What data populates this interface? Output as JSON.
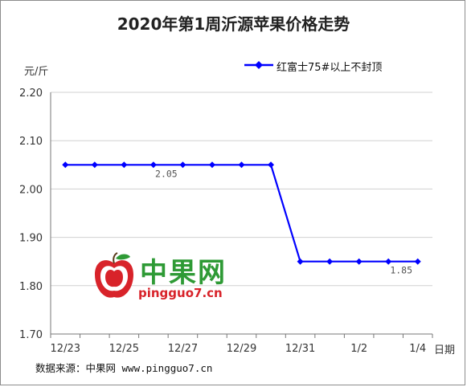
{
  "chart_data": {
    "type": "line",
    "title": "2020年第1周沂源苹果价格走势",
    "ylabel": "元/斤",
    "xlabel": "日期",
    "ylim": [
      1.7,
      2.2
    ],
    "yticks": [
      "2.20",
      "2.10",
      "2.00",
      "1.90",
      "1.80",
      "1.70"
    ],
    "ytick_values": [
      2.2,
      2.1,
      2.0,
      1.9,
      1.8,
      1.7
    ],
    "x": [
      "12/23",
      "12/24",
      "12/25",
      "12/26",
      "12/27",
      "12/28",
      "12/29",
      "12/30",
      "12/31",
      "1/1",
      "1/2",
      "1/3",
      "1/4"
    ],
    "xtick_labels": [
      "12/23",
      "",
      "12/25",
      "",
      "12/27",
      "",
      "12/29",
      "",
      "12/31",
      "",
      "1/2",
      "",
      "1/4"
    ],
    "series": [
      {
        "name": "红富士75#以上不封顶",
        "values": [
          2.05,
          2.05,
          2.05,
          2.05,
          2.05,
          2.05,
          2.05,
          2.05,
          1.85,
          1.85,
          1.85,
          1.85,
          1.85
        ],
        "color": "#0000ff"
      }
    ],
    "annotations": [
      {
        "text": "2.05",
        "at": "12/26"
      },
      {
        "text": "1.85",
        "at": "1/3"
      }
    ],
    "grid": "horizontal",
    "legend": "top-right"
  },
  "watermark": {
    "brand": "中果网",
    "site": "pingguo7.cn",
    "logo_icon": "apple-logo-icon",
    "colors": {
      "green": "#2e9a35",
      "red": "#d8232a"
    }
  },
  "source_note": "数据来源：中果网 www.pingguo7.cn"
}
